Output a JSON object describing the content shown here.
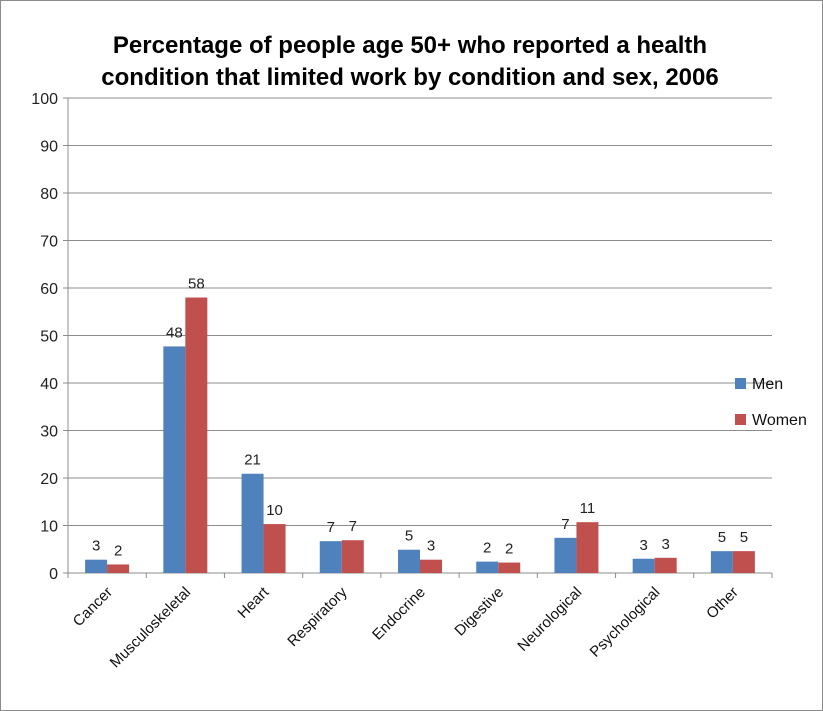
{
  "chart_data": {
    "type": "bar",
    "title": "Percentage of people age 50+ who reported a health condition that limited work by condition and sex, 2006",
    "categories": [
      "Cancer",
      "Musculoskeletal",
      "Heart",
      "Respiratory",
      "Endocrine",
      "Digestive",
      "Neurological",
      "Psychological",
      "Other"
    ],
    "series": [
      {
        "name": "Men",
        "color": "#4f81bd",
        "values": [
          3,
          48,
          21,
          7,
          5,
          2,
          7,
          3,
          5
        ],
        "plot_values": [
          2.8,
          47.7,
          20.9,
          6.7,
          4.9,
          2.4,
          7.4,
          3.0,
          4.6
        ]
      },
      {
        "name": "Women",
        "color": "#c0504d",
        "values": [
          2,
          58,
          10,
          7,
          3,
          2,
          11,
          3,
          5
        ],
        "plot_values": [
          1.8,
          58.0,
          10.3,
          6.9,
          2.8,
          2.2,
          10.7,
          3.2,
          4.6
        ]
      }
    ],
    "ylim": [
      0,
      100
    ],
    "yticks": [
      0,
      10,
      20,
      30,
      40,
      50,
      60,
      70,
      80,
      90,
      100
    ],
    "grid": true,
    "legend_position": "right"
  }
}
